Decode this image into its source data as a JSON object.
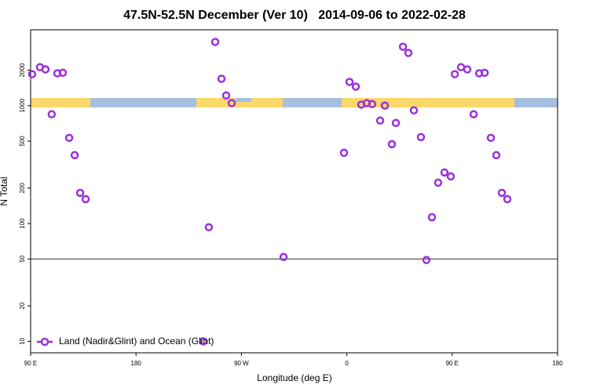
{
  "chart_data": {
    "type": "scatter",
    "title": "47.5N-52.5N December (Ver 10)   2014-09-06 to 2022-02-28",
    "x_label": "Longitude (deg E)",
    "y_label": "N Total",
    "xlim": [
      90,
      540
    ],
    "xticks": [
      {
        "value": 90,
        "label": "90 E"
      },
      180,
      {
        "value": 270,
        "label": "90 W"
      },
      {
        "value": 360,
        "label": "0"
      },
      {
        "value": 450,
        "label": "90 E"
      },
      {
        "value": 540,
        "label": "180"
      }
    ],
    "ylim": [
      8,
      4400
    ],
    "y_log": true,
    "yticks": [
      10,
      20,
      50,
      100,
      200,
      500,
      1000,
      2000
    ],
    "reference_line": 50,
    "legend_position": "bottom-left",
    "series": [
      {
        "name": "Land (Nadir&Glint) and Ocean (Glint)",
        "color": "#9b30e0",
        "x": [
          91.3,
          98,
          102.7,
          108,
          112.8,
          117.5,
          122.9,
          127.6,
          132.3,
          137,
          242.2,
          237.5,
          247.6,
          253,
          257,
          261.7,
          306,
          357.6,
          362.3,
          367.7,
          372.4,
          377,
          381.7,
          388.5,
          392.5,
          398.5,
          401.9,
          408,
          412.6,
          417.3,
          423.3,
          428,
          432.7,
          438,
          443.4,
          448.8,
          452.2,
          457.5,
          462.9,
          468.3,
          473,
          477.7,
          483,
          487.7,
          492.4,
          497.1
        ],
        "values": [
          1850,
          2120,
          2030,
          845,
          1880,
          1900,
          533,
          380,
          182,
          161,
          93,
          10,
          3470,
          1690,
          1220,
          1050,
          52,
          398,
          1590,
          1450,
          1020,
          1050,
          1030,
          747,
          1000,
          471,
          713,
          3160,
          2800,
          912,
          541,
          49,
          113,
          222,
          271,
          251,
          1850,
          2120,
          2030,
          845,
          1880,
          1900,
          533,
          380,
          182,
          161
        ]
      }
    ]
  }
}
